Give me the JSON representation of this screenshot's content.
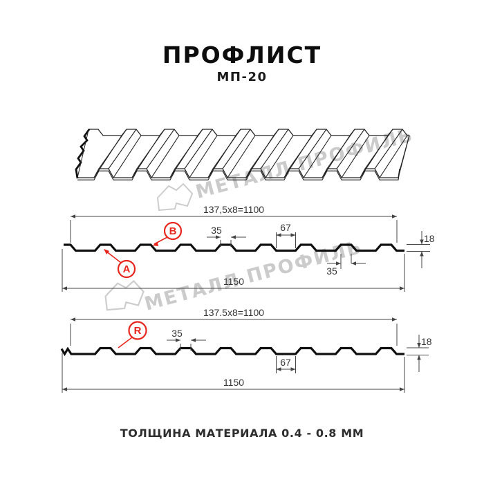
{
  "header": {
    "title": "ПРОФЛИСТ",
    "subtitle": "МП-20"
  },
  "watermark": {
    "text": "МЕТАЛЛ ПРОФИЛЬ"
  },
  "profile_top_section": {
    "dim_module_width": "137,5x8=1100",
    "dim_overall_width": "1150",
    "dim_crest_width": "35",
    "dim_valley_width": "67",
    "dim_crest_width_right": "35",
    "dim_height": "18",
    "label_a": "A",
    "label_b": "B"
  },
  "profile_bottom_section": {
    "dim_module_width": "137.5x8=1100",
    "dim_overall_width": "1150",
    "dim_crest_width": "35",
    "dim_valley_width": "67",
    "dim_height": "18",
    "label_r": "R"
  },
  "footer": {
    "note": "ТОЛЩИНА МАТЕРИАЛА 0.4 - 0.8 ММ"
  },
  "colors": {
    "accent_red": "#e8251d",
    "profile_line": "#0f0f0f",
    "dim_line": "#444444",
    "watermark_gray": "#cbcbcb"
  }
}
